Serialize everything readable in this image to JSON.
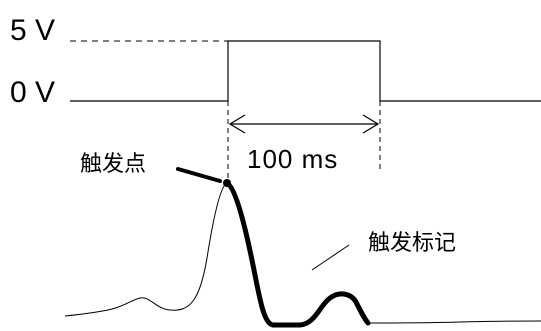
{
  "pulse_diagram": {
    "voltage_high_label": "5 V",
    "voltage_low_label": "0 V",
    "duration_label": "100 ms",
    "trigger_point_label": "触发点",
    "trigger_marker_label": "触发标记"
  },
  "colors": {
    "line": "#000000",
    "background": "#ffffff"
  }
}
